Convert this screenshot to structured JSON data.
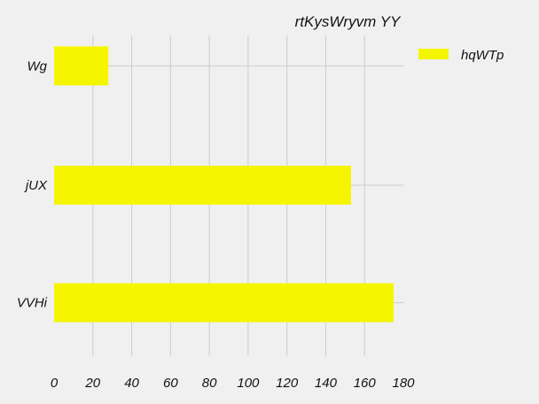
{
  "chart_data": {
    "type": "bar",
    "orientation": "horizontal",
    "title": "rtKysWryvm YY",
    "xlabel": "",
    "ylabel": "",
    "categories": [
      "Wg",
      "jUX",
      "VVHi"
    ],
    "series": [
      {
        "name": "hqWTp",
        "values": [
          28,
          153,
          175
        ]
      }
    ],
    "xlim": [
      0,
      180
    ],
    "x_ticks": [
      0,
      20,
      40,
      60,
      80,
      100,
      120,
      140,
      160,
      180
    ],
    "grid": true,
    "legend_position": "top-right",
    "colors": {
      "bar": "#f5f500",
      "background": "#f0f0f0",
      "grid": "#cbcbcb"
    }
  }
}
